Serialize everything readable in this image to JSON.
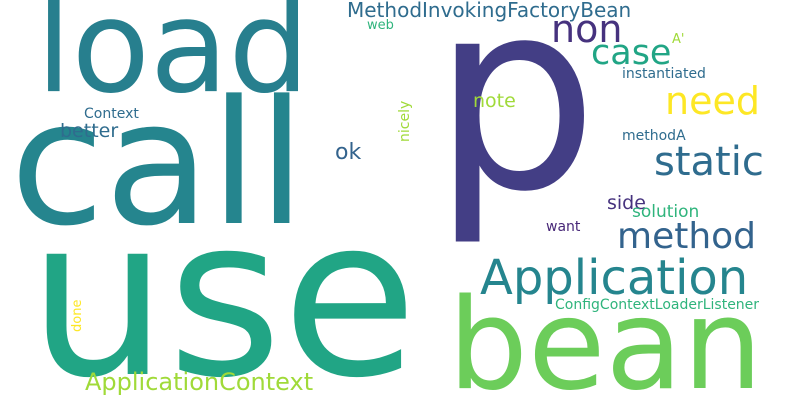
{
  "colors": {
    "background": "#ffffff",
    "dark_purple": "#46327e",
    "indigo": "#433e85",
    "blue": "#33638d",
    "blue_teal": "#2f6c8e",
    "teal": "#25858e",
    "teal_dark": "#277f8e",
    "green_teal": "#21a585",
    "green": "#2fb47c",
    "light_green": "#6ccd5a",
    "lime": "#a0da39",
    "yellow": "#fde725",
    "purple": "#482878"
  },
  "words": [
    {
      "text": "p",
      "color": "#433e85"
    },
    {
      "text": "use",
      "color": "#21a585"
    },
    {
      "text": "call",
      "color": "#25858e"
    },
    {
      "text": "load",
      "color": "#277f8e"
    },
    {
      "text": "bean",
      "color": "#6ccd5a"
    },
    {
      "text": "Application",
      "color": "#25858e"
    },
    {
      "text": "method",
      "color": "#33638d"
    },
    {
      "text": "static",
      "color": "#2f6c8e"
    },
    {
      "text": "need",
      "color": "#fde725"
    },
    {
      "text": "case",
      "color": "#21a585"
    },
    {
      "text": "non",
      "color": "#46327e"
    },
    {
      "text": "MethodInvokingFactoryBean",
      "color": "#2f6c8e"
    },
    {
      "text": "ApplicationContext",
      "color": "#a0da39"
    },
    {
      "text": "ok",
      "color": "#33638d"
    },
    {
      "text": "better",
      "color": "#2f6c8e"
    },
    {
      "text": "note",
      "color": "#a0da39"
    },
    {
      "text": "side",
      "color": "#46327e"
    },
    {
      "text": "solution",
      "color": "#2fb47c"
    },
    {
      "text": "instantiated",
      "color": "#2f6c8e"
    },
    {
      "text": "methodA",
      "color": "#2f6c8e"
    },
    {
      "text": "Context",
      "color": "#2f6c8e"
    },
    {
      "text": "web",
      "color": "#2fb47c"
    },
    {
      "text": "A'",
      "color": "#a0da39"
    },
    {
      "text": "want",
      "color": "#482878"
    },
    {
      "text": "nicely",
      "color": "#a0da39"
    },
    {
      "text": "ConfigContextLoaderListener",
      "color": "#2fb47c"
    },
    {
      "text": "done",
      "color": "#fde725"
    }
  ]
}
